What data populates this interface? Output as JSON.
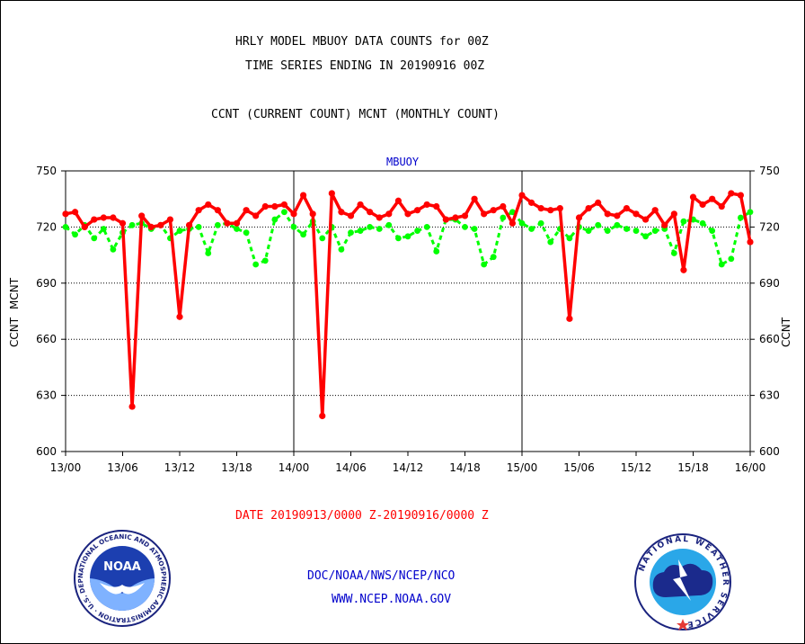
{
  "header": {
    "title_line1": "HRLY MODEL MBUOY DATA COUNTS for 00Z",
    "title_line2": "TIME SERIES ENDING IN 20190916 00Z",
    "subtitle": "CCNT (CURRENT COUNT) MCNT (MONTHLY COUNT)"
  },
  "footer": {
    "date_range": "DATE 20190913/0000 Z-20190916/0000 Z",
    "org": "DOC/NOAA/NWS/NCEP/NCO",
    "url": "WWW.NCEP.NOAA.GOV",
    "noaa_logo_text": "NOAA",
    "noaa_ring_text": "NATIONAL OCEANIC AND ATMOSPHERIC ADMINISTRATION · U.S. DEPARTMENT OF COMMERCE ·",
    "nws_ring_text": "NATIONAL WEATHER SERVICE"
  },
  "colors": {
    "ccnt": "#ff0000",
    "mcnt": "#00ff00",
    "panel_title": "#0000cc",
    "footer_text": "#0000cc",
    "date_text": "#ff0000"
  },
  "chart_data": {
    "type": "line",
    "title": "MBUOY",
    "ylabel_left": [
      "CCNT",
      "MCNT"
    ],
    "ylim": [
      600,
      750
    ],
    "yticks": [
      600,
      630,
      660,
      690,
      720,
      750
    ],
    "xlim": [
      0,
      72
    ],
    "xtick_labels": [
      "13/00",
      "13/06",
      "13/12",
      "13/18",
      "14/00",
      "14/06",
      "14/12",
      "14/18",
      "15/00",
      "15/06",
      "15/12",
      "15/18",
      "16/00"
    ],
    "grid": "horizontal dotted",
    "day_dividers_at_hour": [
      24,
      48
    ],
    "series": [
      {
        "name": "CCNT",
        "x": [
          0,
          1,
          2,
          3,
          4,
          5,
          6,
          7,
          8,
          9,
          10,
          11,
          12,
          13,
          14,
          15,
          16,
          17,
          18,
          19,
          20,
          21,
          22,
          23,
          24,
          25,
          26,
          27,
          28,
          29,
          30,
          31,
          32,
          33,
          34,
          35,
          36,
          37,
          38,
          39,
          40,
          41,
          42,
          43,
          44,
          45,
          46,
          47,
          48,
          49,
          50,
          51,
          52,
          53,
          54,
          55,
          56,
          57,
          58,
          59,
          60,
          61,
          62,
          63,
          64,
          65,
          66,
          67,
          68,
          69,
          70,
          71,
          72
        ],
        "values": [
          727,
          728,
          720,
          724,
          725,
          725,
          722,
          624,
          726,
          720,
          721,
          724,
          672,
          721,
          729,
          732,
          729,
          722,
          722,
          729,
          726,
          731,
          731,
          732,
          727,
          737,
          727,
          619,
          738,
          728,
          726,
          732,
          728,
          725,
          727,
          734,
          727,
          729,
          732,
          731,
          724,
          725,
          726,
          735,
          727,
          729,
          731,
          722,
          737,
          733,
          730,
          729,
          730,
          671,
          725,
          730,
          733,
          727,
          726,
          730,
          727,
          724,
          729,
          721,
          727,
          697,
          736,
          732,
          735,
          731,
          738,
          737,
          712
        ]
      },
      {
        "name": "MCNT",
        "x": [
          0,
          1,
          2,
          3,
          4,
          5,
          6,
          7,
          8,
          9,
          10,
          11,
          12,
          13,
          14,
          15,
          16,
          17,
          18,
          19,
          20,
          21,
          22,
          23,
          24,
          25,
          26,
          27,
          28,
          29,
          30,
          31,
          32,
          33,
          34,
          35,
          36,
          37,
          38,
          39,
          40,
          41,
          42,
          43,
          44,
          45,
          46,
          47,
          48,
          49,
          50,
          51,
          52,
          53,
          54,
          55,
          56,
          57,
          58,
          59,
          60,
          61,
          62,
          63,
          64,
          65,
          66,
          67,
          68,
          69,
          70,
          71,
          72
        ],
        "values": [
          720,
          716,
          721,
          714,
          719,
          708,
          717,
          721,
          722,
          719,
          721,
          714,
          718,
          719,
          720,
          706,
          721,
          722,
          719,
          717,
          700,
          702,
          724,
          728,
          720,
          716,
          723,
          714,
          720,
          708,
          717,
          718,
          720,
          719,
          721,
          714,
          715,
          718,
          720,
          707,
          724,
          724,
          720,
          719,
          700,
          704,
          725,
          728,
          722,
          719,
          722,
          712,
          719,
          714,
          720,
          718,
          721,
          718,
          721,
          719,
          718,
          715,
          718,
          719,
          706,
          723,
          724,
          722,
          718,
          700,
          703,
          725,
          728
        ]
      }
    ]
  }
}
